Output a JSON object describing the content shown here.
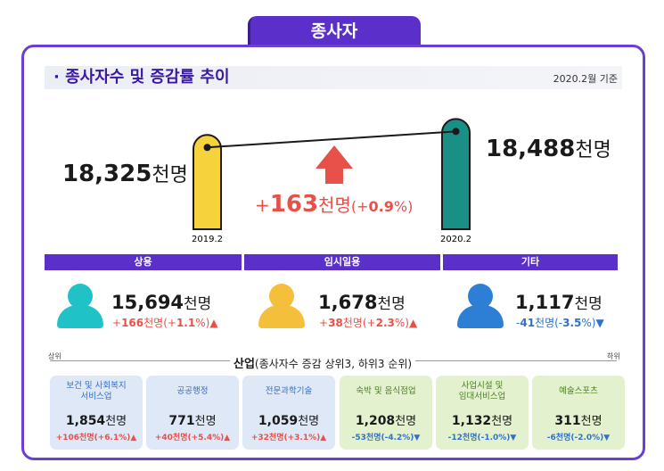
{
  "header": {
    "tab_label": "종사자"
  },
  "section": {
    "title": "· 종사자수 및 증감률 추이",
    "note": "2020.2월 기준"
  },
  "colors": {
    "purple": "#5b2fc9",
    "bar_2019": "#f6d33c",
    "bar_2020": "#1a8f86",
    "arrow": "#e8504a",
    "increase": "#e8504a",
    "decrease": "#2e73c9",
    "person_regular": "#1fc3c7",
    "person_temporary": "#f4bf3a",
    "person_other": "#2d7fd6"
  },
  "chart_data": {
    "type": "bar",
    "categories": [
      "2019.2",
      "2020.2"
    ],
    "values": [
      18325,
      18488
    ],
    "value_labels": [
      {
        "num": "18,325",
        "unit": "천명"
      },
      {
        "num": "18,488",
        "unit": "천명"
      }
    ],
    "change": {
      "sign": "+",
      "num": "163",
      "unit": "천명",
      "pct_open": "(+",
      "pct": "0.9",
      "pct_close": "%)"
    },
    "ylim": [
      0,
      18700
    ]
  },
  "employment_types": [
    {
      "label": "상용",
      "num": "15,694",
      "unit": "천명",
      "chg_sign": "+",
      "chg": "166",
      "chg_unit": "천명(+",
      "pct": "1.1",
      "pct_close": "%)",
      "arrow": "▲",
      "direction": "up"
    },
    {
      "label": "임시일용",
      "num": "1,678",
      "unit": "천명",
      "chg_sign": "+",
      "chg": "38",
      "chg_unit": "천명(+",
      "pct": "2.3",
      "pct_close": "%)",
      "arrow": "▲",
      "direction": "up"
    },
    {
      "label": "기타",
      "num": "1,117",
      "unit": "천명",
      "chg_sign": "-",
      "chg": "41",
      "chg_unit": "천명(-",
      "pct": "3.5",
      "pct_close": "%)",
      "arrow": "▼",
      "direction": "down"
    }
  ],
  "industry": {
    "left_label": "상위",
    "right_label": "하위",
    "title_bold": "산업",
    "title_rest": "(종사자수 증감 상위3, 하위3 순위)",
    "cards": [
      {
        "name_line1": "보건 및 사회복지",
        "name_line2": "서비스업",
        "num": "1,854",
        "unit": "천명",
        "chg": "+106천명(+6.1%)",
        "arrow": "▲",
        "direction": "up"
      },
      {
        "name_line1": "공공행정",
        "name_line2": "",
        "num": "771",
        "unit": "천명",
        "chg": "+40천명(+5.4%)",
        "arrow": "▲",
        "direction": "up"
      },
      {
        "name_line1": "전문과학기술",
        "name_line2": "",
        "num": "1,059",
        "unit": "천명",
        "chg": "+32천명(+3.1%)",
        "arrow": "▲",
        "direction": "up"
      },
      {
        "name_line1": "숙박 및 음식점업",
        "name_line2": "",
        "num": "1,208",
        "unit": "천명",
        "chg": "-53천명(-4.2%)",
        "arrow": "▼",
        "direction": "down"
      },
      {
        "name_line1": "사업시설 및",
        "name_line2": "임대서비스업",
        "num": "1,132",
        "unit": "천명",
        "chg": "-12천명(-1.0%)",
        "arrow": "▼",
        "direction": "down"
      },
      {
        "name_line1": "예술스포츠",
        "name_line2": "",
        "num": "311",
        "unit": "천명",
        "chg": "-6천명(-2.0%)",
        "arrow": "▼",
        "direction": "down"
      }
    ]
  }
}
